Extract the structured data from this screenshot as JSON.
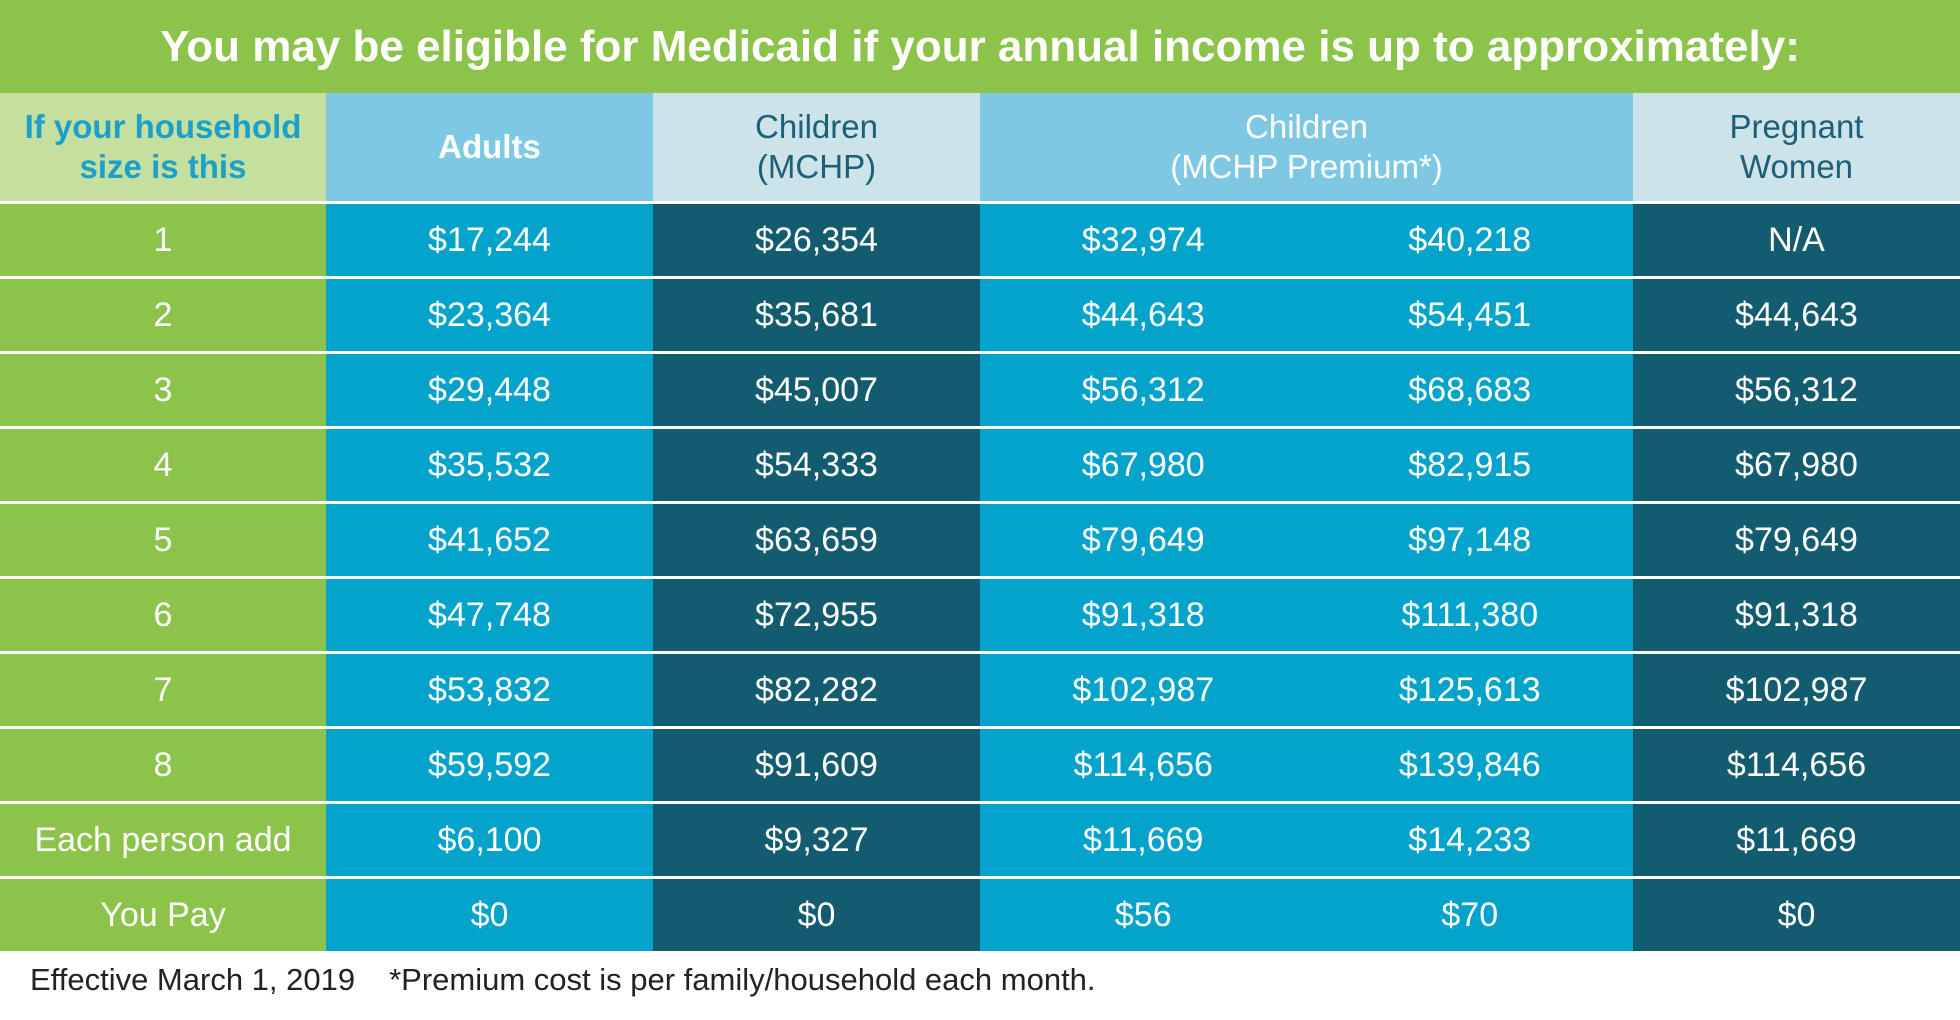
{
  "title": "You may be eligible for Medicaid if your annual income is up to approximately:",
  "headers": {
    "size": [
      "If your household",
      "size is this"
    ],
    "adults": "Adults",
    "mchp": [
      "Children",
      "(MCHP)"
    ],
    "premium": [
      "Children",
      "(MCHP Premium*)"
    ],
    "pregnant": [
      "Pregnant",
      "Women"
    ]
  },
  "rows": [
    {
      "size": "1",
      "adults": "$17,244",
      "mchp": "$26,354",
      "premium_low": "$32,974",
      "premium_high": "$40,218",
      "pregnant": "N/A"
    },
    {
      "size": "2",
      "adults": "$23,364",
      "mchp": "$35,681",
      "premium_low": "$44,643",
      "premium_high": "$54,451",
      "pregnant": "$44,643"
    },
    {
      "size": "3",
      "adults": "$29,448",
      "mchp": "$45,007",
      "premium_low": "$56,312",
      "premium_high": "$68,683",
      "pregnant": "$56,312"
    },
    {
      "size": "4",
      "adults": "$35,532",
      "mchp": "$54,333",
      "premium_low": "$67,980",
      "premium_high": "$82,915",
      "pregnant": "$67,980"
    },
    {
      "size": "5",
      "adults": "$41,652",
      "mchp": "$63,659",
      "premium_low": "$79,649",
      "premium_high": "$97,148",
      "pregnant": "$79,649"
    },
    {
      "size": "6",
      "adults": "$47,748",
      "mchp": "$72,955",
      "premium_low": "$91,318",
      "premium_high": "$111,380",
      "pregnant": "$91,318"
    },
    {
      "size": "7",
      "adults": "$53,832",
      "mchp": "$82,282",
      "premium_low": "$102,987",
      "premium_high": "$125,613",
      "pregnant": "$102,987"
    },
    {
      "size": "8",
      "adults": "$59,592",
      "mchp": "$91,609",
      "premium_low": "$114,656",
      "premium_high": "$139,846",
      "pregnant": "$114,656"
    },
    {
      "size": "Each person add",
      "adults": "$6,100",
      "mchp": "$9,327",
      "premium_low": "$11,669",
      "premium_high": "$14,233",
      "pregnant": "$11,669"
    },
    {
      "size": "You Pay",
      "adults": "$0",
      "mchp": "$0",
      "premium_low": "$56",
      "premium_high": "$70",
      "pregnant": "$0"
    }
  ],
  "footer": {
    "effective": "Effective March 1, 2019",
    "note": "*Premium cost is per family/household each month."
  },
  "colors": {
    "green": "#8cc34a",
    "light_green": "#c5df9f",
    "cyan": "#04a3cb",
    "light_cyan": "#7ec8e3",
    "dark_teal": "#135b6e",
    "pale_blue": "#cde3ea"
  }
}
